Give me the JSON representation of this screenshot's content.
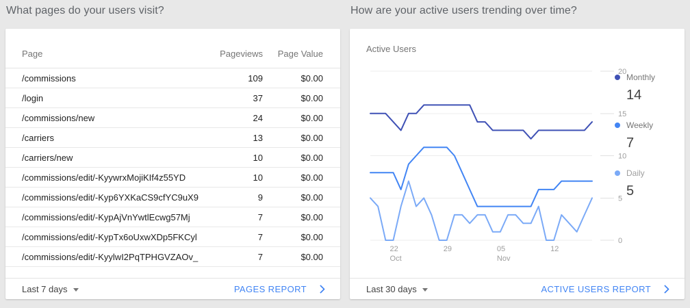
{
  "page_background": "#e8e8e8",
  "accent_color": "#4285f4",
  "left_card": {
    "question": "What pages do your users visit?",
    "table": {
      "columns": [
        "Page",
        "Pageviews",
        "Page Value"
      ],
      "rows": [
        {
          "page": "/commissions",
          "pageviews": "109",
          "page_value": "$0.00"
        },
        {
          "page": "/login",
          "pageviews": "37",
          "page_value": "$0.00"
        },
        {
          "page": "/commissions/new",
          "pageviews": "24",
          "page_value": "$0.00"
        },
        {
          "page": "/carriers",
          "pageviews": "13",
          "page_value": "$0.00"
        },
        {
          "page": "/carriers/new",
          "pageviews": "10",
          "page_value": "$0.00"
        },
        {
          "page": "/commissions/edit/-KyywrxMojiKIf4z55YD",
          "pageviews": "10",
          "page_value": "$0.00"
        },
        {
          "page": "/commissions/edit/-Kyp6YXKaCS9cfYC9uX9",
          "pageviews": "9",
          "page_value": "$0.00"
        },
        {
          "page": "/commissions/edit/-KypAjVnYwtlEcwg57Mj",
          "pageviews": "7",
          "page_value": "$0.00"
        },
        {
          "page": "/commissions/edit/-KypTx6oUxwXDp5FKCyl",
          "pageviews": "7",
          "page_value": "$0.00"
        },
        {
          "page": "/commissions/edit/-KyylwI2PqTPHGVZAOv_",
          "pageviews": "7",
          "page_value": "$0.00"
        }
      ]
    },
    "footer": {
      "range_label": "Last 7 days",
      "report_label": "PAGES REPORT"
    }
  },
  "right_card": {
    "question": "How are your active users trending over time?",
    "chart_label": "Active Users",
    "legend": [
      {
        "label": "Monthly",
        "value": "14",
        "color": "#3f51b5",
        "label_color": "#757575"
      },
      {
        "label": "Weekly",
        "value": "7",
        "color": "#4285f4",
        "label_color": "#757575"
      },
      {
        "label": "Daily",
        "value": "5",
        "color": "#7baaf7",
        "label_color": "#9e9e9e"
      }
    ],
    "footer": {
      "range_label": "Last 30 days",
      "report_label": "ACTIVE USERS REPORT"
    }
  },
  "chart_data": {
    "type": "line",
    "title": "Active Users",
    "x_unit": "day",
    "x_range": "last 30 days",
    "x_ticks": [
      {
        "index": 3,
        "label": "22",
        "sub": "Oct"
      },
      {
        "index": 10,
        "label": "29"
      },
      {
        "index": 17,
        "label": "05",
        "sub": "Nov"
      },
      {
        "index": 24,
        "label": "12"
      }
    ],
    "ylim": [
      0,
      20
    ],
    "y_ticks": [
      0,
      5,
      10,
      15,
      20
    ],
    "grid": true,
    "legend_position": "right",
    "series": [
      {
        "name": "Monthly",
        "color": "#3f51b5",
        "values": [
          15,
          15,
          15,
          14,
          13,
          15,
          15,
          16,
          16,
          16,
          16,
          16,
          16,
          16,
          14,
          14,
          13,
          13,
          13,
          13,
          13,
          12,
          13,
          13,
          13,
          13,
          13,
          13,
          13,
          14
        ]
      },
      {
        "name": "Weekly",
        "color": "#4285f4",
        "values": [
          8,
          8,
          8,
          8,
          6,
          9,
          10,
          11,
          11,
          11,
          11,
          10,
          8,
          6,
          4,
          4,
          4,
          4,
          4,
          4,
          4,
          4,
          6,
          6,
          6,
          7,
          7,
          7,
          7,
          7
        ]
      },
      {
        "name": "Daily",
        "color": "#7baaf7",
        "values": [
          5,
          4,
          0,
          0,
          4,
          7,
          4,
          5,
          3,
          0,
          0,
          3,
          3,
          2,
          3,
          3,
          1,
          1,
          3,
          3,
          2,
          2,
          4,
          0,
          0,
          3,
          2,
          1,
          3,
          5
        ]
      }
    ]
  }
}
